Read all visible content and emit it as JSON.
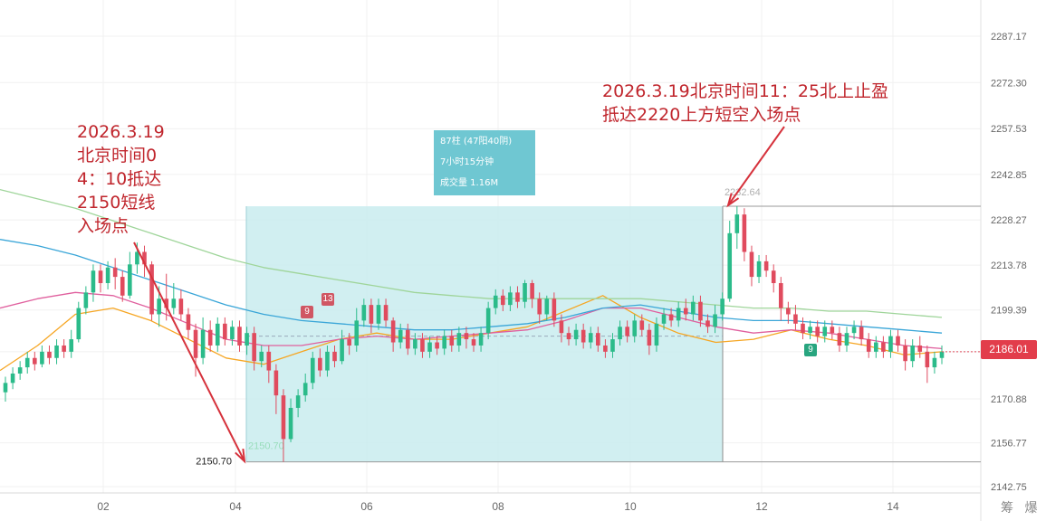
{
  "chart_data": {
    "type": "candlestick",
    "y_ticks": [
      "2287.17",
      "2272.30",
      "2257.53",
      "2242.85",
      "2228.27",
      "2213.78",
      "2199.39",
      "2186.01",
      "2170.88",
      "2156.77",
      "2142.75"
    ],
    "x_ticks": [
      "02",
      "04",
      "06",
      "08",
      "10",
      "12",
      "14"
    ],
    "ylim": [
      2142.75,
      2287.17
    ],
    "grid": true,
    "current_price": "2186.01",
    "range_low_label": "2150.70",
    "range_low_axis_label": "2150.70",
    "range_high_label": "2232.64",
    "candles": [
      [
        2173,
        2176,
        2170,
        2178
      ],
      [
        2176,
        2179,
        2174,
        2181
      ],
      [
        2179,
        2181,
        2177,
        2183
      ],
      [
        2181,
        2184,
        2179,
        2186
      ],
      [
        2184,
        2182,
        2180,
        2186
      ],
      [
        2182,
        2186,
        2181,
        2188
      ],
      [
        2186,
        2184,
        2182,
        2188
      ],
      [
        2184,
        2188,
        2182,
        2190
      ],
      [
        2188,
        2186,
        2184,
        2190
      ],
      [
        2186,
        2190,
        2184,
        2193
      ],
      [
        2190,
        2200,
        2189,
        2202
      ],
      [
        2200,
        2205,
        2198,
        2207
      ],
      [
        2205,
        2212,
        2202,
        2214
      ],
      [
        2212,
        2208,
        2205,
        2214
      ],
      [
        2208,
        2213,
        2206,
        2215
      ],
      [
        2213,
        2210,
        2206,
        2216
      ],
      [
        2210,
        2204,
        2202,
        2212
      ],
      [
        2204,
        2214,
        2203,
        2218
      ],
      [
        2214,
        2218,
        2211,
        2221
      ],
      [
        2218,
        2214,
        2210,
        2220
      ],
      [
        2214,
        2198,
        2196,
        2215
      ],
      [
        2198,
        2203,
        2194,
        2207
      ],
      [
        2203,
        2200,
        2196,
        2211
      ],
      [
        2200,
        2203,
        2198,
        2208
      ],
      [
        2203,
        2198,
        2196,
        2206
      ],
      [
        2198,
        2193,
        2190,
        2200
      ],
      [
        2193,
        2184,
        2178,
        2195
      ],
      [
        2184,
        2193,
        2182,
        2197
      ],
      [
        2193,
        2188,
        2186,
        2196
      ],
      [
        2188,
        2195,
        2186,
        2197
      ],
      [
        2195,
        2190,
        2188,
        2197
      ],
      [
        2190,
        2194,
        2188,
        2196
      ],
      [
        2194,
        2188,
        2186,
        2196
      ],
      [
        2188,
        2192,
        2185,
        2194
      ],
      [
        2192,
        2183,
        2180,
        2194
      ],
      [
        2183,
        2186,
        2181,
        2188
      ],
      [
        2186,
        2180,
        2176,
        2188
      ],
      [
        2180,
        2172,
        2166,
        2182
      ],
      [
        2172,
        2158,
        2150.7,
        2174
      ],
      [
        2158,
        2168,
        2157,
        2171
      ],
      [
        2168,
        2172,
        2165,
        2174
      ],
      [
        2172,
        2176,
        2170,
        2179
      ],
      [
        2176,
        2184,
        2174,
        2186
      ],
      [
        2184,
        2180,
        2178,
        2187
      ],
      [
        2180,
        2186,
        2178,
        2188
      ],
      [
        2186,
        2183,
        2181,
        2188
      ],
      [
        2183,
        2190,
        2182,
        2193
      ],
      [
        2190,
        2188,
        2185,
        2192
      ],
      [
        2188,
        2196,
        2186,
        2200
      ],
      [
        2196,
        2201,
        2194,
        2203
      ],
      [
        2201,
        2195,
        2192,
        2203
      ],
      [
        2195,
        2201,
        2193,
        2203
      ],
      [
        2201,
        2196,
        2194,
        2203
      ],
      [
        2196,
        2189,
        2186,
        2197
      ],
      [
        2189,
        2193,
        2187,
        2195
      ],
      [
        2193,
        2187,
        2185,
        2195
      ],
      [
        2187,
        2190,
        2185,
        2192
      ],
      [
        2190,
        2186,
        2184,
        2192
      ],
      [
        2186,
        2189,
        2184,
        2191
      ],
      [
        2189,
        2187,
        2185,
        2191
      ],
      [
        2187,
        2191,
        2185,
        2193
      ],
      [
        2191,
        2188,
        2186,
        2193
      ],
      [
        2188,
        2192,
        2186,
        2194
      ],
      [
        2192,
        2190,
        2187,
        2194
      ],
      [
        2190,
        2188,
        2186,
        2192
      ],
      [
        2188,
        2192,
        2186,
        2194
      ],
      [
        2192,
        2200,
        2190,
        2202
      ],
      [
        2200,
        2204,
        2198,
        2206
      ],
      [
        2204,
        2201,
        2199,
        2206
      ],
      [
        2201,
        2205,
        2199,
        2207
      ],
      [
        2205,
        2202,
        2200,
        2207
      ],
      [
        2202,
        2208,
        2200,
        2209
      ],
      [
        2208,
        2203,
        2200,
        2209
      ],
      [
        2203,
        2198,
        2195,
        2205
      ],
      [
        2198,
        2203,
        2196,
        2204
      ],
      [
        2203,
        2196,
        2194,
        2205
      ],
      [
        2196,
        2192,
        2189,
        2198
      ],
      [
        2192,
        2190,
        2188,
        2194
      ],
      [
        2190,
        2193,
        2188,
        2195
      ],
      [
        2193,
        2189,
        2187,
        2195
      ],
      [
        2189,
        2192,
        2187,
        2194
      ],
      [
        2192,
        2188,
        2186,
        2194
      ],
      [
        2188,
        2186,
        2184,
        2190
      ],
      [
        2186,
        2190,
        2184,
        2192
      ],
      [
        2190,
        2194,
        2188,
        2196
      ],
      [
        2194,
        2191,
        2189,
        2196
      ],
      [
        2191,
        2196,
        2189,
        2198
      ],
      [
        2196,
        2193,
        2191,
        2198
      ],
      [
        2193,
        2188,
        2185,
        2195
      ],
      [
        2188,
        2195,
        2186,
        2197
      ],
      [
        2195,
        2198,
        2193,
        2200
      ],
      [
        2198,
        2196,
        2194,
        2200
      ],
      [
        2196,
        2200,
        2194,
        2202
      ],
      [
        2200,
        2198,
        2196,
        2203
      ],
      [
        2198,
        2202,
        2196,
        2204
      ],
      [
        2202,
        2196,
        2194,
        2204
      ],
      [
        2196,
        2194,
        2192,
        2198
      ],
      [
        2194,
        2198,
        2192,
        2201
      ],
      [
        2198,
        2203,
        2196,
        2205
      ],
      [
        2203,
        2224,
        2202,
        2228
      ],
      [
        2224,
        2230,
        2219,
        2232.64
      ],
      [
        2230,
        2218,
        2215,
        2232
      ],
      [
        2218,
        2210,
        2207,
        2220
      ],
      [
        2210,
        2215,
        2208,
        2217
      ],
      [
        2215,
        2212,
        2210,
        2217
      ],
      [
        2212,
        2208,
        2205,
        2214
      ],
      [
        2208,
        2200,
        2196,
        2210
      ],
      [
        2200,
        2198,
        2195,
        2202
      ],
      [
        2198,
        2195,
        2193,
        2201
      ],
      [
        2195,
        2192,
        2190,
        2197
      ],
      [
        2192,
        2194,
        2190,
        2196
      ],
      [
        2194,
        2191,
        2189,
        2196
      ],
      [
        2191,
        2194,
        2189,
        2196
      ],
      [
        2194,
        2192,
        2190,
        2196
      ],
      [
        2192,
        2188,
        2186,
        2194
      ],
      [
        2188,
        2192,
        2186,
        2194
      ],
      [
        2192,
        2194,
        2190,
        2196
      ],
      [
        2194,
        2190,
        2188,
        2196
      ],
      [
        2190,
        2186,
        2184,
        2192
      ],
      [
        2186,
        2189,
        2184,
        2191
      ],
      [
        2189,
        2186,
        2184,
        2191
      ],
      [
        2186,
        2191,
        2184,
        2193
      ],
      [
        2191,
        2188,
        2186,
        2193
      ],
      [
        2188,
        2183,
        2180,
        2190
      ],
      [
        2183,
        2188,
        2181,
        2190
      ],
      [
        2188,
        2186,
        2184,
        2191
      ],
      [
        2186,
        2181,
        2176,
        2188
      ],
      [
        2181,
        2184,
        2179,
        2186
      ],
      [
        2184,
        2186,
        2182,
        2188
      ]
    ],
    "moving_averages": [
      {
        "color": "#f6a623",
        "values": [
          2180,
          2188,
          2198,
          2200,
          2196,
          2190,
          2184,
          2182,
          2186,
          2190,
          2192,
          2190,
          2190,
          2192,
          2194,
          2199,
          2204,
          2197,
          2192,
          2189,
          2190,
          2193,
          2190,
          2188,
          2185,
          2186
        ]
      },
      {
        "color": "#e0609e",
        "values": [
          2200,
          2203,
          2205,
          2204,
          2200,
          2195,
          2190,
          2188,
          2188,
          2190,
          2191,
          2190,
          2191,
          2192,
          2193,
          2196,
          2200,
          2200,
          2197,
          2194,
          2192,
          2193,
          2192,
          2190,
          2188,
          2187
        ]
      },
      {
        "color": "#3aa6d8",
        "values": [
          2222,
          2220,
          2217,
          2213,
          2209,
          2205,
          2201,
          2198,
          2196,
          2195,
          2194,
          2193,
          2193,
          2194,
          2195,
          2197,
          2200,
          2201,
          2199,
          2197,
          2196,
          2196,
          2195,
          2194,
          2193,
          2192
        ]
      },
      {
        "color": "#9fd59a",
        "values": [
          2238,
          2235,
          2232,
          2228,
          2224,
          2220,
          2216,
          2213,
          2211,
          2209,
          2207,
          2205,
          2204,
          2203,
          2203,
          2203,
          2203,
          2203,
          2202,
          2201,
          2200,
          2200,
          2199,
          2199,
          2198,
          2197
        ]
      }
    ]
  },
  "annotations": {
    "left": "2026.3.19\n北京时间0\n4：10抵达\n2150短线\n入场点",
    "right": "2026.3.19北京时间11：25北上止盈\n抵达2220上方短空入场点"
  },
  "info_box": {
    "line1": "87柱 (47阳40阴)",
    "line2": "7小时15分钟",
    "line3": "成交量 1.16M"
  },
  "badges": [
    "9",
    "13",
    "9"
  ],
  "watermark": "筹 爆",
  "colors": {
    "up": "#2bbb8a",
    "down": "#e04b5e",
    "box_fill": "#c9ecef",
    "box_border": "#9ecfd6",
    "annotation": "#c0262d",
    "grid": "#f1f1f1",
    "axis_text": "#666666"
  }
}
